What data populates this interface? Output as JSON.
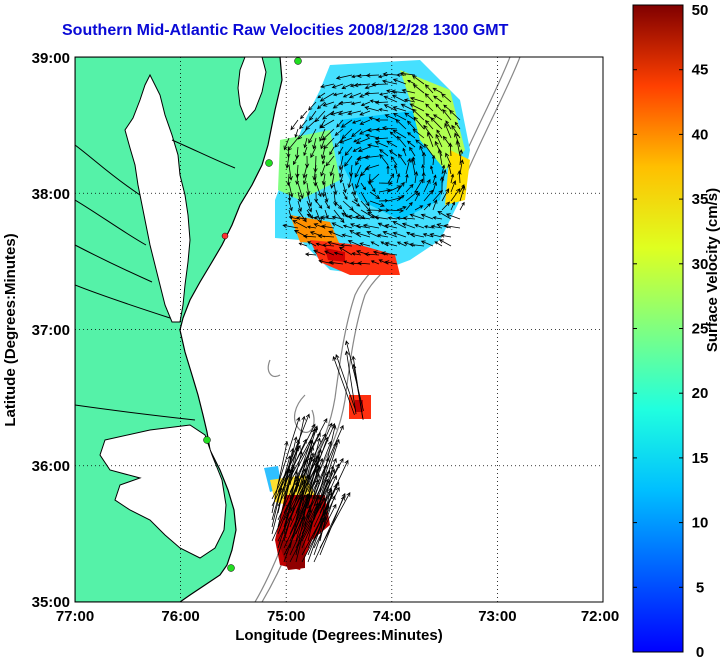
{
  "title": "Southern Mid-Atlantic Raw Velocities 2008/12/28 1300 GMT",
  "x_axis": {
    "label": "Longitude (Degrees:Minutes)",
    "ticks": [
      "77:00",
      "76:00",
      "75:00",
      "74:00",
      "73:00",
      "72:00"
    ],
    "values": [
      -77,
      -76,
      -75,
      -74,
      -73,
      -72
    ]
  },
  "y_axis": {
    "label": "Latitude (Degrees:Minutes)",
    "ticks": [
      "39:00",
      "38:00",
      "37:00",
      "36:00",
      "35:00"
    ],
    "values": [
      39,
      38,
      37,
      36,
      35
    ]
  },
  "colorbar": {
    "label": "Surface Velocity (cm/s)",
    "ticks": [
      "50",
      "45",
      "40",
      "35",
      "30",
      "25",
      "20",
      "15",
      "10",
      "5",
      "0"
    ],
    "min": 0,
    "max": 50,
    "scale": "jet"
  },
  "colors": {
    "title": "#0a0ad6",
    "land": "#55f2a8",
    "coast": "#000000",
    "bathymetry": "#888888",
    "grid": "#000000",
    "stations": "#22dd22",
    "arrows": "#000000"
  },
  "map_extent": {
    "lon": [
      -77,
      -72
    ],
    "lat": [
      35,
      39
    ]
  },
  "grid": "dotted",
  "chart_data": {
    "type": "heatmap",
    "title": "Southern Mid-Atlantic Raw Velocities 2008/12/28 1300 GMT",
    "xlabel": "Longitude (Degrees:Minutes)",
    "ylabel": "Latitude (Degrees:Minutes)",
    "xlim": [
      -77,
      -72
    ],
    "ylim": [
      35,
      39
    ],
    "colorbar_range": [
      0,
      50
    ],
    "regions": [
      {
        "name": "",
        "lon_range": [
          -75.0,
          -73.2
        ],
        "lat_range": [
          37.45,
          38.95
        ],
        "speed_range_cm_s": [
          5,
          45
        ]
      },
      {
        "name": "",
        "lon_range": [
          -74.45,
          -74.25
        ],
        "lat_range": [
          36.35,
          36.55
        ],
        "speed_range_cm_s": [
          40,
          45
        ]
      },
      {
        "name": "",
        "lon_range": [
          -75.2,
          -74.6
        ],
        "lat_range": [
          35.25,
          36.2
        ],
        "speed_range_cm_s": [
          10,
          50
        ]
      }
    ]
  }
}
